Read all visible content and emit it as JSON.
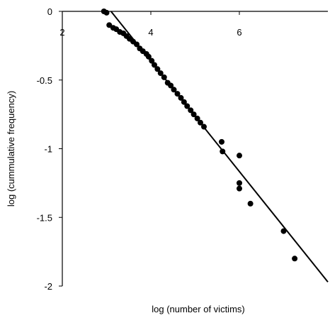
{
  "chart_data": {
    "type": "scatter",
    "title": "",
    "xlabel": "log (number of victims)",
    "ylabel": "log (cummulative frequency)",
    "xlim": [
      2,
      8
    ],
    "ylim": [
      -2,
      0
    ],
    "x_ticks": [
      2,
      4,
      6
    ],
    "x_tick_labels": [
      "2",
      "4",
      "6"
    ],
    "y_ticks": [
      0,
      -0.5,
      -1,
      -1.5,
      -2
    ],
    "y_tick_labels": [
      "0",
      "-0.5",
      "-1",
      "-1.5",
      "-2"
    ],
    "grid": false,
    "legend": "none",
    "marker_color": "#000000",
    "series": [
      {
        "points": [
          [
            2.94,
            0.0
          ],
          [
            3.0,
            -0.01
          ],
          [
            3.06,
            -0.1
          ],
          [
            3.15,
            -0.12
          ],
          [
            3.22,
            -0.13
          ],
          [
            3.3,
            -0.15
          ],
          [
            3.38,
            -0.16
          ],
          [
            3.45,
            -0.18
          ],
          [
            3.52,
            -0.2
          ],
          [
            3.6,
            -0.22
          ],
          [
            3.68,
            -0.24
          ],
          [
            3.75,
            -0.27
          ],
          [
            3.82,
            -0.29
          ],
          [
            3.9,
            -0.31
          ],
          [
            3.95,
            -0.33
          ],
          [
            4.02,
            -0.36
          ],
          [
            4.08,
            -0.39
          ],
          [
            4.15,
            -0.42
          ],
          [
            4.22,
            -0.45
          ],
          [
            4.3,
            -0.48
          ],
          [
            4.38,
            -0.52
          ],
          [
            4.45,
            -0.54
          ],
          [
            4.52,
            -0.57
          ],
          [
            4.6,
            -0.6
          ],
          [
            4.68,
            -0.63
          ],
          [
            4.75,
            -0.66
          ],
          [
            4.82,
            -0.69
          ],
          [
            4.9,
            -0.72
          ],
          [
            4.97,
            -0.75
          ],
          [
            5.05,
            -0.78
          ],
          [
            5.12,
            -0.81
          ],
          [
            5.2,
            -0.84
          ],
          [
            5.6,
            -0.95
          ],
          [
            5.62,
            -1.02
          ],
          [
            6.0,
            -1.05
          ],
          [
            6.0,
            -1.25
          ],
          [
            6.0,
            -1.29
          ],
          [
            6.25,
            -1.4
          ],
          [
            7.0,
            -1.6
          ],
          [
            7.25,
            -1.8
          ]
        ]
      }
    ],
    "trendline": {
      "x": [
        3.1,
        8.0
      ],
      "y": [
        0.0,
        -1.97
      ]
    }
  }
}
